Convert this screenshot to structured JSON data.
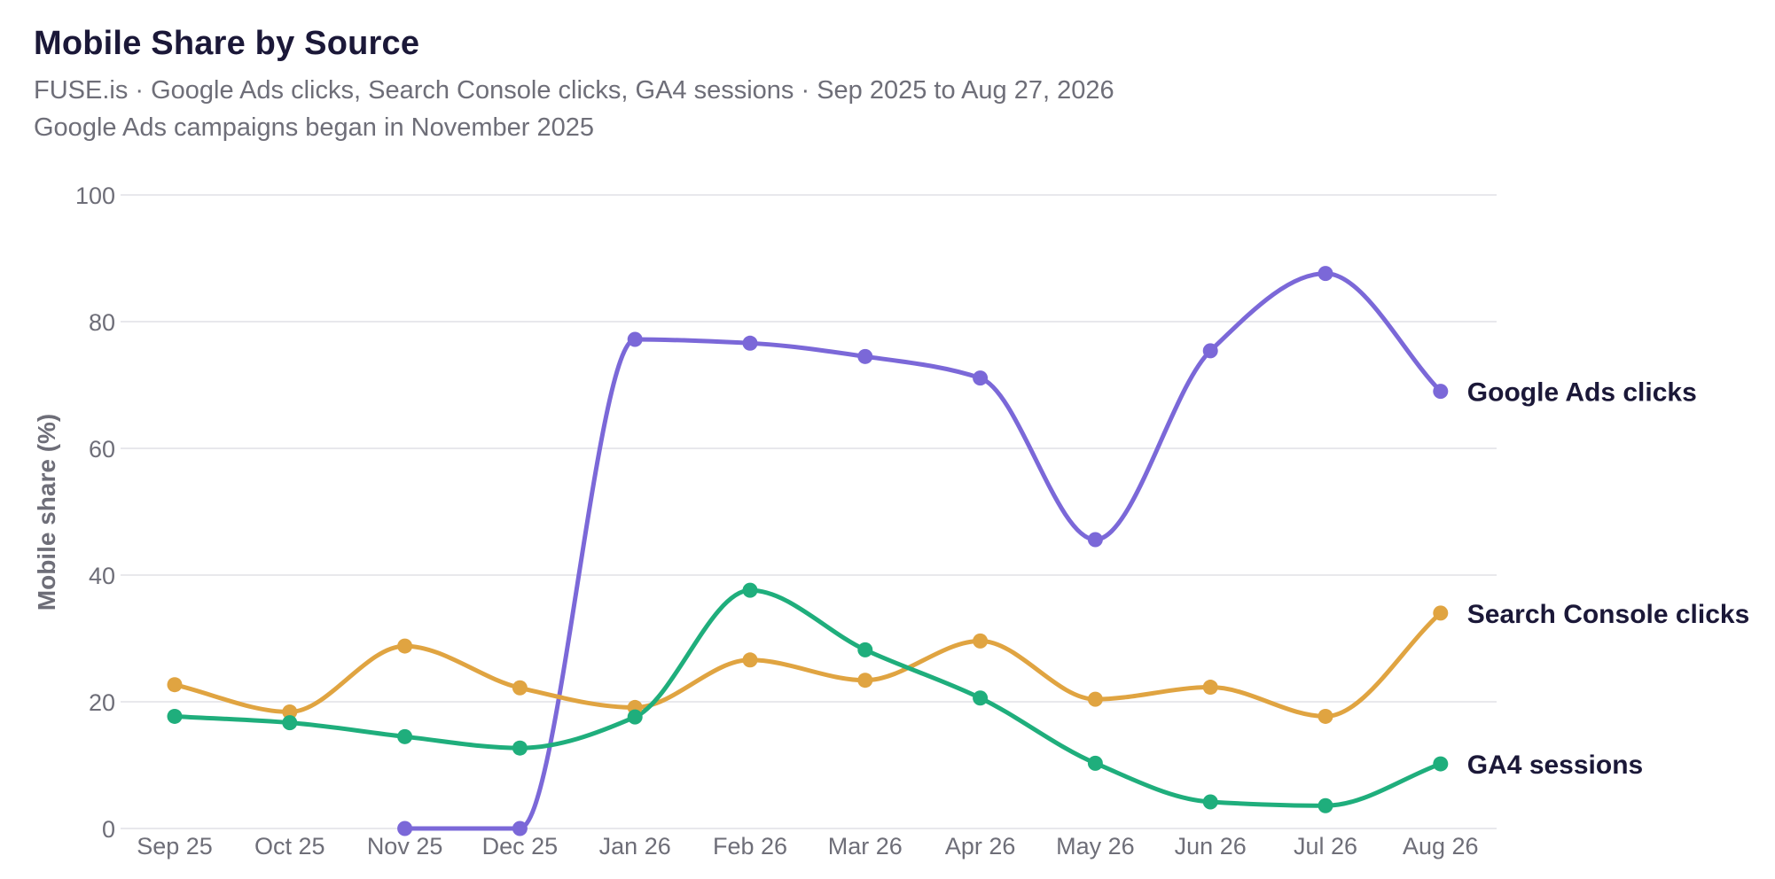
{
  "title": "Mobile Share by Source",
  "subtitle": "FUSE.is · Google Ads clicks, Search Console clicks, GA4 sessions · Sep 2025 to Aug 27, 2026",
  "note": "Google Ads campaigns began in November 2025",
  "chart_data": {
    "type": "line",
    "title": "Mobile Share by Source",
    "ylabel": "Mobile share (%)",
    "xlabel": "",
    "ylim": [
      0,
      100
    ],
    "yticks": [
      0,
      20,
      40,
      60,
      80,
      100
    ],
    "grid": true,
    "legend": "inline-right",
    "categories": [
      "Sep 25",
      "Oct 25",
      "Nov 25",
      "Dec 25",
      "Jan 26",
      "Feb 26",
      "Mar 26",
      "Apr 26",
      "May 26",
      "Jun 26",
      "Jul 26",
      "Aug 26"
    ],
    "series": [
      {
        "name": "Google Ads clicks",
        "color": "#7b68d8",
        "values": [
          null,
          null,
          0,
          0,
          77.2,
          76.6,
          74.5,
          71.1,
          45.6,
          75.4,
          87.6,
          69.0
        ]
      },
      {
        "name": "Search Console clicks",
        "color": "#e0a441",
        "values": [
          22.7,
          18.4,
          28.8,
          22.2,
          19.1,
          26.6,
          23.4,
          29.6,
          20.4,
          22.3,
          17.7,
          34.0
        ]
      },
      {
        "name": "GA4 sessions",
        "color": "#1fae7c",
        "values": [
          17.7,
          16.7,
          14.5,
          12.7,
          17.6,
          37.6,
          28.2,
          20.6,
          10.3,
          4.2,
          3.6,
          10.2
        ]
      }
    ]
  }
}
